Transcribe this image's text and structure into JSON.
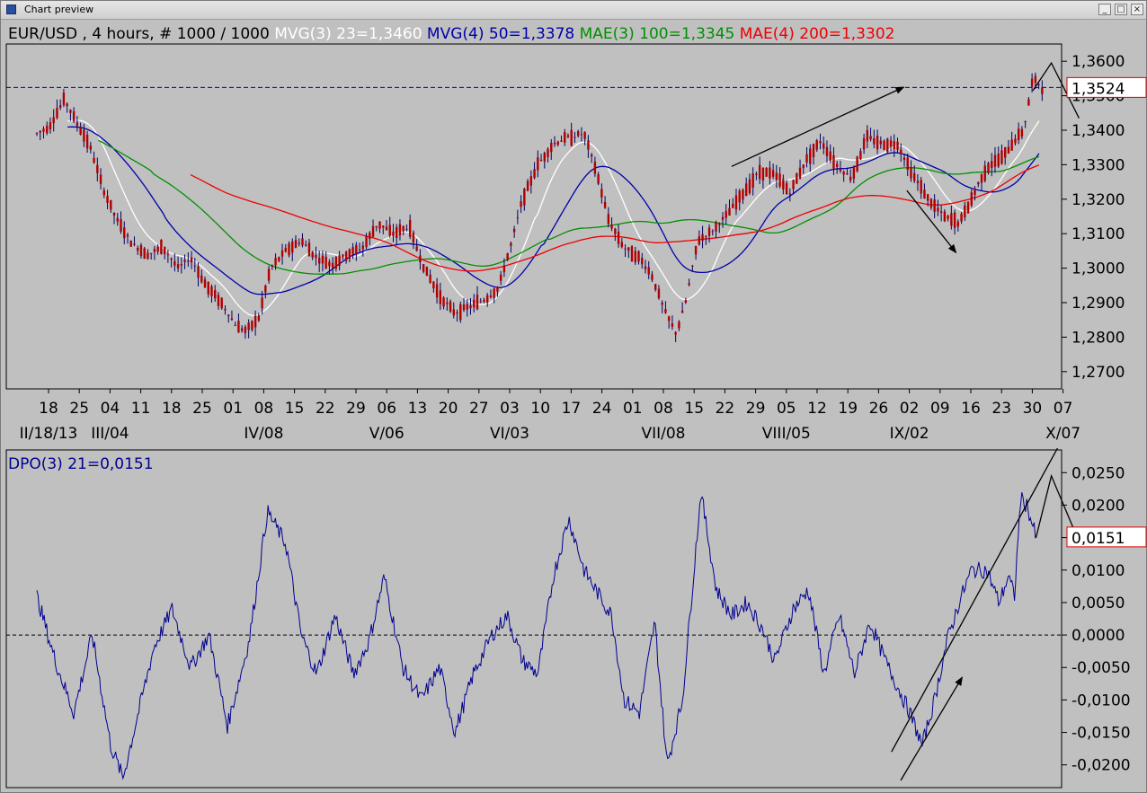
{
  "window": {
    "title": "Chart preview",
    "controls": {
      "minimize": "_",
      "maximize": "□",
      "close": "×"
    }
  },
  "colors": {
    "background": "#c0c0c0",
    "candle_body": "#b00000",
    "candle_wick": "#000066",
    "mvg3": "#ffffff",
    "mvg4": "#0000aa",
    "mae3": "#009000",
    "mae4": "#ee0000",
    "dpo": "#000090",
    "reference": "#0000aa",
    "annotation": "#000000"
  },
  "chart_data": [
    {
      "type": "candlestick",
      "instrument": "EUR/USD",
      "title_segments": [
        {
          "text": "EUR/USD , 4 hours, # 1000 / 1000",
          "color": "#000000"
        },
        {
          "text": "MVG(3) 23=1,3460",
          "color": "#ffffff"
        },
        {
          "text": "MVG(4) 50=1,3378",
          "color": "#0000aa"
        },
        {
          "text": "MAE(3) 100=1,3345",
          "color": "#009000"
        },
        {
          "text": "MAE(4) 200=1,3302",
          "color": "#ee0000"
        }
      ],
      "ylim": [
        1.265,
        1.365
      ],
      "yticks": [
        1.27,
        1.28,
        1.29,
        1.3,
        1.31,
        1.32,
        1.33,
        1.34,
        1.35,
        1.36
      ],
      "ytick_labels": [
        "1,2700",
        "1,2800",
        "1,2900",
        "1,3000",
        "1,3100",
        "1,3200",
        "1,3300",
        "1,3400",
        "1,3500",
        "1,3600"
      ],
      "current_value": 1.3524,
      "current_value_label": "1,3524",
      "x_day_ticks": [
        "18",
        "25",
        "04",
        "11",
        "18",
        "25",
        "01",
        "08",
        "15",
        "22",
        "29",
        "06",
        "13",
        "20",
        "27",
        "03",
        "10",
        "17",
        "24",
        "01",
        "08",
        "15",
        "22",
        "29",
        "05",
        "12",
        "19",
        "26",
        "02",
        "09",
        "16",
        "23",
        "30",
        "07"
      ],
      "x_month_labels": [
        {
          "label": "II/18/13",
          "tick_index": 0
        },
        {
          "label": "III/04",
          "tick_index": 2
        },
        {
          "label": "IV/08",
          "tick_index": 7
        },
        {
          "label": "V/06",
          "tick_index": 11
        },
        {
          "label": "VI/03",
          "tick_index": 15
        },
        {
          "label": "VII/08",
          "tick_index": 20
        },
        {
          "label": "VIII/05",
          "tick_index": 24
        },
        {
          "label": "IX/02",
          "tick_index": 28
        },
        {
          "label": "X/07",
          "tick_index": 33
        }
      ],
      "price_path": [
        [
          0,
          1.339
        ],
        [
          0.4,
          1.341
        ],
        [
          0.9,
          1.349
        ],
        [
          1.3,
          1.342
        ],
        [
          1.7,
          1.336
        ],
        [
          2.2,
          1.322
        ],
        [
          2.6,
          1.314
        ],
        [
          3.1,
          1.307
        ],
        [
          3.6,
          1.304
        ],
        [
          4.1,
          1.306
        ],
        [
          4.6,
          1.3
        ],
        [
          5.0,
          1.303
        ],
        [
          5.5,
          1.295
        ],
        [
          6.0,
          1.29
        ],
        [
          6.5,
          1.283
        ],
        [
          6.8,
          1.282
        ],
        [
          7.2,
          1.285
        ],
        [
          7.6,
          1.3
        ],
        [
          8.1,
          1.305
        ],
        [
          8.6,
          1.308
        ],
        [
          9.1,
          1.303
        ],
        [
          9.6,
          1.301
        ],
        [
          10.1,
          1.304
        ],
        [
          10.6,
          1.306
        ],
        [
          11.1,
          1.313
        ],
        [
          11.6,
          1.31
        ],
        [
          12.1,
          1.312
        ],
        [
          12.6,
          1.3
        ],
        [
          13.1,
          1.292
        ],
        [
          13.6,
          1.287
        ],
        [
          14.1,
          1.289
        ],
        [
          14.6,
          1.291
        ],
        [
          15.0,
          1.294
        ],
        [
          15.4,
          1.306
        ],
        [
          15.8,
          1.32
        ],
        [
          16.3,
          1.33
        ],
        [
          16.8,
          1.336
        ],
        [
          17.3,
          1.338
        ],
        [
          17.8,
          1.339
        ],
        [
          18.2,
          1.328
        ],
        [
          18.6,
          1.314
        ],
        [
          19.1,
          1.306
        ],
        [
          19.6,
          1.303
        ],
        [
          20.0,
          1.298
        ],
        [
          20.4,
          1.288
        ],
        [
          20.8,
          1.281
        ],
        [
          21.1,
          1.29
        ],
        [
          21.5,
          1.308
        ],
        [
          22.0,
          1.311
        ],
        [
          22.5,
          1.316
        ],
        [
          23.0,
          1.322
        ],
        [
          23.5,
          1.328
        ],
        [
          24.0,
          1.327
        ],
        [
          24.5,
          1.322
        ],
        [
          25.0,
          1.331
        ],
        [
          25.5,
          1.337
        ],
        [
          26.0,
          1.33
        ],
        [
          26.5,
          1.326
        ],
        [
          27.0,
          1.338
        ],
        [
          27.5,
          1.336
        ],
        [
          28.0,
          1.336
        ],
        [
          28.5,
          1.327
        ],
        [
          29.0,
          1.32
        ],
        [
          29.5,
          1.315
        ],
        [
          30.0,
          1.313
        ],
        [
          30.3,
          1.318
        ],
        [
          30.7,
          1.326
        ],
        [
          31.0,
          1.33
        ],
        [
          31.4,
          1.332
        ],
        [
          31.8,
          1.337
        ],
        [
          32.1,
          1.34
        ],
        [
          32.4,
          1.355
        ],
        [
          32.7,
          1.3524
        ]
      ],
      "moving_averages": [
        {
          "name": "MVG(3) 23",
          "color_key": "mvg3",
          "lag": 0.5,
          "span": 1.6,
          "start": 1.0
        },
        {
          "name": "MVG(4) 50",
          "color_key": "mvg4",
          "lag": 1.2,
          "span": 3.2,
          "start": 1.0
        },
        {
          "name": "MAE(3) 100",
          "color_key": "mae3",
          "lag": 2.4,
          "span": 6.5,
          "start": 2.0
        },
        {
          "name": "MAE(4) 200",
          "color_key": "mae4",
          "lag": 4.8,
          "span": 12,
          "start": 5.0
        }
      ],
      "annotations": [
        {
          "type": "arrow",
          "from": [
            22.6,
            1.3295
          ],
          "to": [
            28.2,
            1.3525
          ]
        },
        {
          "type": "arrow",
          "from": [
            28.3,
            1.3225
          ],
          "to": [
            29.9,
            1.3045
          ]
        },
        {
          "type": "line",
          "points": [
            [
              32.4,
              1.3515
            ],
            [
              33.0,
              1.3595
            ],
            [
              33.9,
              1.3435
            ]
          ]
        }
      ]
    },
    {
      "type": "line",
      "series": [
        {
          "name": "DPO(3) 21",
          "color_key": "dpo"
        }
      ],
      "legend_label": "DPO(3) 21=0,0151",
      "ylim": [
        -0.0235,
        0.0285
      ],
      "yticks": [
        -0.02,
        -0.015,
        -0.01,
        -0.005,
        0,
        0.005,
        0.01,
        0.015,
        0.02,
        0.025
      ],
      "ytick_labels": [
        "-0,0200",
        "-0,0150",
        "-0,0100",
        "-0,0050",
        "0,0000",
        "0,0050",
        "0,0100",
        "0,0150",
        "0,0200",
        "0,0250"
      ],
      "current_value": 0.0151,
      "current_value_label": "0,0151",
      "x": [
        0,
        0.6,
        1.2,
        1.8,
        2.4,
        2.8,
        3.3,
        3.8,
        4.4,
        5.0,
        5.6,
        6.2,
        6.9,
        7.5,
        8.1,
        8.6,
        9.1,
        9.7,
        10.3,
        10.8,
        11.3,
        11.9,
        12.5,
        13.1,
        13.6,
        14.2,
        14.8,
        15.3,
        15.8,
        16.3,
        16.8,
        17.3,
        17.8,
        18.3,
        18.7,
        19.1,
        19.6,
        20.1,
        20.5,
        21.0,
        21.6,
        22.1,
        22.6,
        23.1,
        23.6,
        24.0,
        24.6,
        25.1,
        25.6,
        26.1,
        26.6,
        27.1,
        27.6,
        28.0,
        28.4,
        28.8,
        29.2,
        29.6,
        30.0,
        30.4,
        30.9,
        31.3,
        31.6,
        31.8,
        32.0,
        32.2,
        32.5
      ],
      "values": [
        0.006,
        -0.004,
        -0.012,
        0.0,
        -0.017,
        -0.022,
        -0.012,
        -0.002,
        0.004,
        -0.005,
        0.0,
        -0.014,
        -0.001,
        0.019,
        0.014,
        0.0,
        -0.006,
        0.003,
        -0.006,
        -0.001,
        0.009,
        -0.005,
        -0.01,
        -0.005,
        -0.015,
        -0.006,
        0.0,
        0.003,
        -0.004,
        -0.006,
        0.009,
        0.018,
        0.01,
        0.006,
        0.003,
        -0.01,
        -0.012,
        0.002,
        -0.02,
        -0.01,
        0.022,
        0.007,
        0.003,
        0.005,
        0.001,
        -0.004,
        0.004,
        0.007,
        -0.006,
        0.003,
        -0.006,
        0.002,
        -0.004,
        -0.008,
        -0.012,
        -0.017,
        -0.01,
        -0.001,
        0.005,
        0.01,
        0.01,
        0.005,
        0.009,
        0.006,
        0.021,
        0.02,
        0.0151
      ]
    }
  ]
}
